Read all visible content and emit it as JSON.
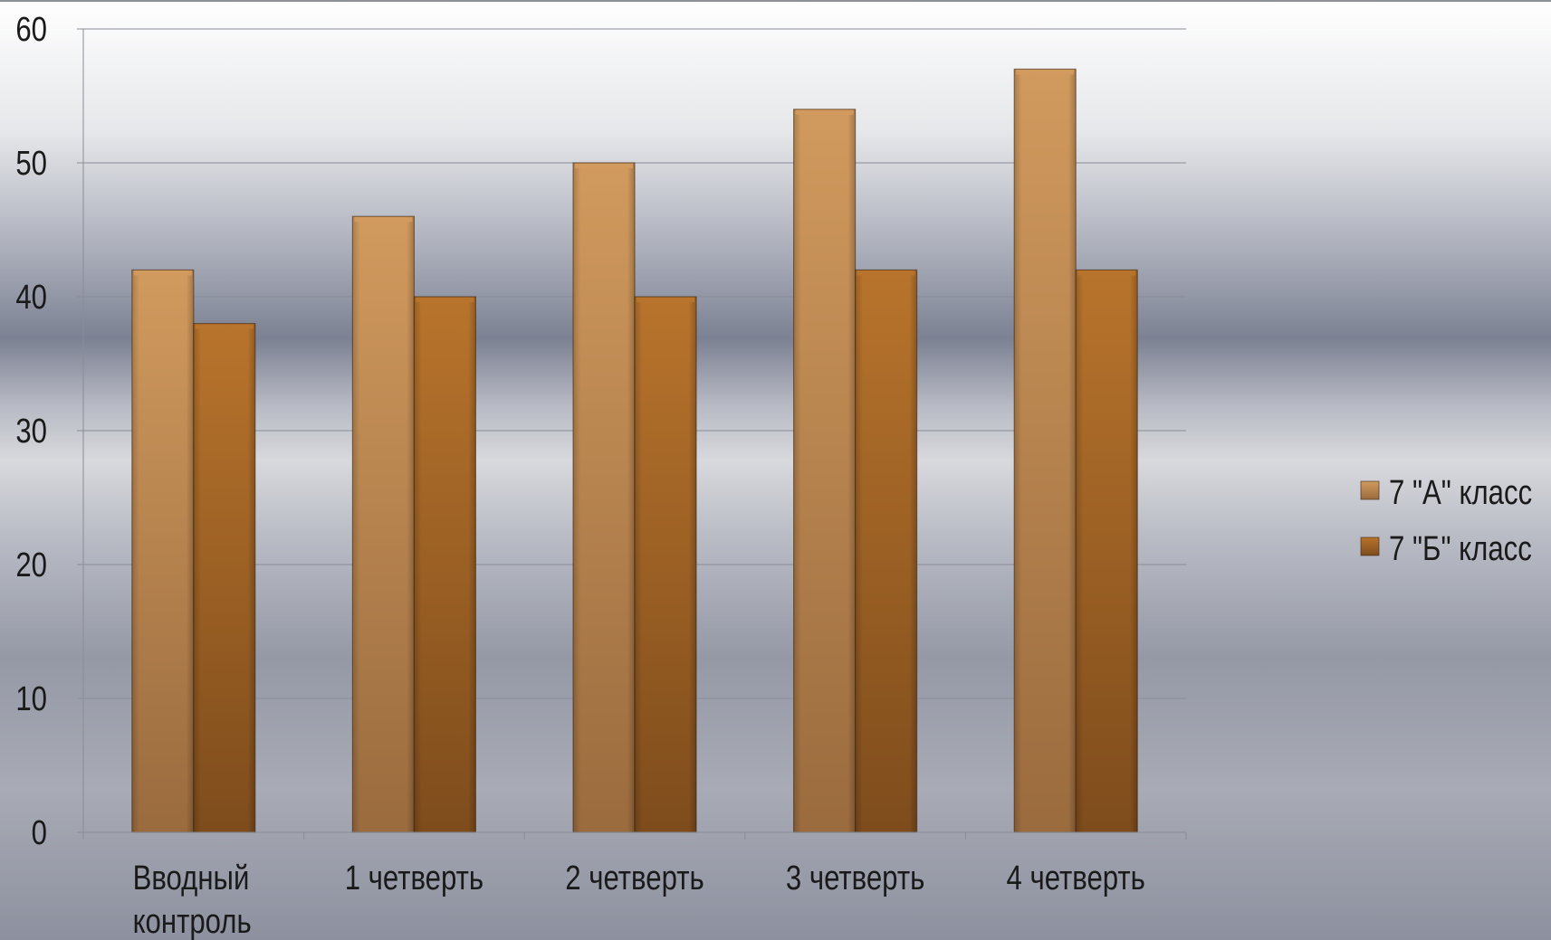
{
  "chart_data": {
    "type": "bar",
    "categories": [
      [
        "Вводный",
        "контроль"
      ],
      [
        "1 четверть"
      ],
      [
        "2 четверть"
      ],
      [
        "3 четверть"
      ],
      [
        "4 четверть"
      ]
    ],
    "series": [
      {
        "name": "7 \"А\" класс",
        "values": [
          42,
          46,
          50,
          54,
          57
        ],
        "color_light": "#d19a5e",
        "color_dark": "#9a6b3e"
      },
      {
        "name": "7 \"Б\" класс",
        "values": [
          38,
          40,
          40,
          42,
          42
        ],
        "color_light": "#b8742c",
        "color_dark": "#7e4c1c"
      }
    ],
    "ylim": [
      0,
      60
    ],
    "yticks": [
      "0",
      "10",
      "20",
      "30",
      "40",
      "50",
      "60"
    ],
    "grid": true,
    "legend_position": "right"
  }
}
